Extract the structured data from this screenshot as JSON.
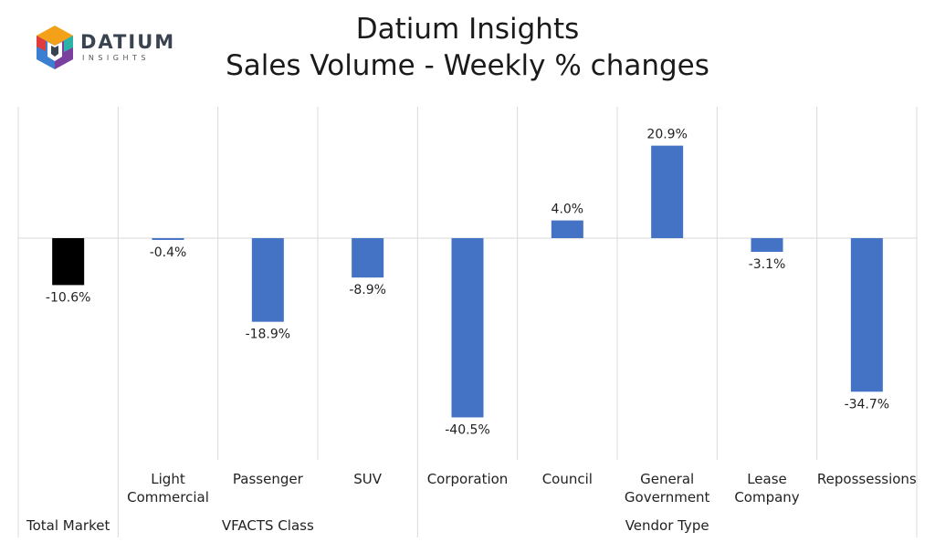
{
  "logo": {
    "icon": "datium-cube-logo-icon",
    "wordmark": "DATIUM",
    "tagline": "INSIGHTS"
  },
  "header": {
    "title": "Datium Insights",
    "subtitle": "Sales Volume - Weekly % changes"
  },
  "chart_data": {
    "type": "bar",
    "categories": [
      "",
      "Light Commercial",
      "Passenger",
      "SUV",
      "Corporation",
      "Council",
      "General Government",
      "Lease Company",
      "Repossessions"
    ],
    "category_lines": [
      [
        ""
      ],
      [
        "Light",
        "Commercial"
      ],
      [
        "Passenger"
      ],
      [
        "SUV"
      ],
      [
        "Corporation"
      ],
      [
        "Council"
      ],
      [
        "General",
        "Government"
      ],
      [
        "Lease",
        "Company"
      ],
      [
        "Repossessions"
      ]
    ],
    "groups": [
      {
        "label": "Total Market",
        "span": [
          0,
          0
        ]
      },
      {
        "label": "VFACTS Class",
        "span": [
          1,
          3
        ]
      },
      {
        "label": "Vendor Type",
        "span": [
          4,
          8
        ]
      }
    ],
    "values": [
      -10.6,
      -0.4,
      -18.9,
      -8.9,
      -40.5,
      4.0,
      20.9,
      -3.1,
      -34.7
    ],
    "value_labels": [
      "-10.6%",
      "-0.4%",
      "-18.9%",
      "-8.9%",
      "-40.5%",
      "4.0%",
      "20.9%",
      "-3.1%",
      "-34.7%"
    ],
    "ylim": [
      -50,
      30
    ],
    "colors": [
      "#000000",
      "#4472c4",
      "#4472c4",
      "#4472c4",
      "#4472c4",
      "#4472c4",
      "#4472c4",
      "#4472c4",
      "#4472c4"
    ],
    "grid": false,
    "xlabel": "",
    "ylabel": ""
  }
}
